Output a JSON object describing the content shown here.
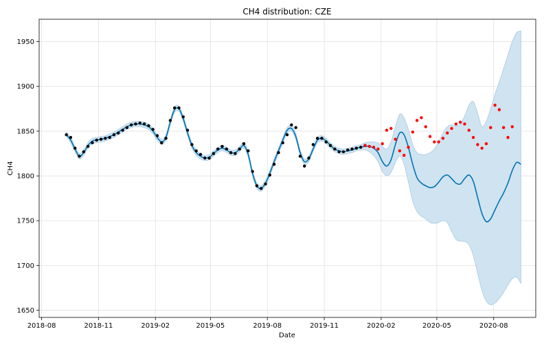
{
  "chart_data": {
    "type": "line",
    "title": "CH4 distribution: CZE",
    "xlabel": "Date",
    "ylabel": "CH4",
    "x_ticks": [
      "2018-08",
      "2018-11",
      "2019-02",
      "2019-05",
      "2019-08",
      "2019-11",
      "2020-02",
      "2020-05",
      "2020-08"
    ],
    "y_ticks": [
      1650,
      1700,
      1750,
      1800,
      1850,
      1900,
      1950
    ],
    "xlim": [
      "2018-07-28",
      "2020-10-08"
    ],
    "ylim": [
      1642,
      1975
    ],
    "grid": true,
    "colors": {
      "forecast": "#0072B2",
      "uncertainty": "#cfe3f0",
      "uncertainty_edge": "#a9cbe3",
      "history": "#000000",
      "actual_future": "#ff0000",
      "grid": "#e0e0e0"
    },
    "series": [
      {
        "role": "history",
        "x": [
          "2018-09-10",
          "2018-09-17",
          "2018-09-24",
          "2018-10-01",
          "2018-10-08",
          "2018-10-15",
          "2018-10-22",
          "2018-10-29",
          "2018-11-05",
          "2018-11-12",
          "2018-11-19",
          "2018-11-26",
          "2018-12-03",
          "2018-12-10",
          "2018-12-17",
          "2018-12-24",
          "2018-12-31",
          "2019-01-07",
          "2019-01-14",
          "2019-01-21",
          "2019-01-28",
          "2019-02-04",
          "2019-02-11",
          "2019-02-18",
          "2019-02-25",
          "2019-03-04",
          "2019-03-11",
          "2019-03-18",
          "2019-03-25",
          "2019-04-01",
          "2019-04-08",
          "2019-04-15",
          "2019-04-22",
          "2019-04-29",
          "2019-05-06",
          "2019-05-13",
          "2019-05-20",
          "2019-05-27",
          "2019-06-03",
          "2019-06-10",
          "2019-06-17",
          "2019-06-24",
          "2019-07-01",
          "2019-07-08",
          "2019-07-15",
          "2019-07-22",
          "2019-07-29",
          "2019-08-05",
          "2019-08-12",
          "2019-08-19",
          "2019-08-26",
          "2019-09-02",
          "2019-09-09",
          "2019-09-16",
          "2019-09-23",
          "2019-09-30",
          "2019-10-07",
          "2019-10-14",
          "2019-10-21",
          "2019-10-28",
          "2019-11-04",
          "2019-11-11",
          "2019-11-18",
          "2019-11-25",
          "2019-12-02",
          "2019-12-09",
          "2019-12-16",
          "2019-12-23",
          "2019-12-30",
          "2020-01-06"
        ],
        "y": [
          1846,
          1843,
          1831,
          1822,
          1827,
          1833,
          1837,
          1840,
          1841,
          1842,
          1843,
          1846,
          1848,
          1851,
          1854,
          1857,
          1858,
          1859,
          1858,
          1856,
          1852,
          1845,
          1837,
          1842,
          1862,
          1876,
          1876,
          1866,
          1851,
          1835,
          1828,
          1824,
          1820,
          1820,
          1825,
          1830,
          1833,
          1830,
          1826,
          1825,
          1830,
          1836,
          1828,
          1805,
          1789,
          1786,
          1791,
          1801,
          1813,
          1826,
          1837,
          1846,
          1857,
          1854,
          1822,
          1811,
          1820,
          1835,
          1842,
          1842,
          1838,
          1834,
          1830,
          1827,
          1827,
          1829,
          1830,
          1831,
          1832,
          1834
        ]
      },
      {
        "role": "actual_future",
        "x": [
          "2020-01-06",
          "2020-01-13",
          "2020-01-20",
          "2020-01-27",
          "2020-02-03",
          "2020-02-10",
          "2020-02-17",
          "2020-02-24",
          "2020-03-02",
          "2020-03-09",
          "2020-03-16",
          "2020-03-23",
          "2020-03-30",
          "2020-04-06",
          "2020-04-13",
          "2020-04-20",
          "2020-04-27",
          "2020-05-04",
          "2020-05-11",
          "2020-05-18",
          "2020-05-25",
          "2020-06-01",
          "2020-06-08",
          "2020-06-15",
          "2020-06-22",
          "2020-06-29",
          "2020-07-06",
          "2020-07-13",
          "2020-07-20",
          "2020-07-27",
          "2020-08-03",
          "2020-08-10",
          "2020-08-17",
          "2020-08-24",
          "2020-08-31"
        ],
        "y": [
          1834,
          1833,
          1832,
          1830,
          1836,
          1851,
          1853,
          1841,
          1828,
          1823,
          1832,
          1849,
          1862,
          1865,
          1855,
          1844,
          1838,
          1838,
          1842,
          1848,
          1853,
          1858,
          1860,
          1858,
          1851,
          1843,
          1835,
          1831,
          1836,
          1854,
          1879,
          1874,
          1854,
          1843,
          1855
        ]
      },
      {
        "role": "forecast",
        "x": [
          "2018-09-10",
          "2018-09-17",
          "2018-09-24",
          "2018-10-01",
          "2018-10-08",
          "2018-10-15",
          "2018-10-22",
          "2018-10-29",
          "2018-11-05",
          "2018-11-12",
          "2018-11-19",
          "2018-11-26",
          "2018-12-03",
          "2018-12-10",
          "2018-12-17",
          "2018-12-24",
          "2018-12-31",
          "2019-01-07",
          "2019-01-14",
          "2019-01-21",
          "2019-01-28",
          "2019-02-04",
          "2019-02-11",
          "2019-02-18",
          "2019-02-25",
          "2019-03-04",
          "2019-03-11",
          "2019-03-18",
          "2019-03-25",
          "2019-04-01",
          "2019-04-08",
          "2019-04-15",
          "2019-04-22",
          "2019-04-29",
          "2019-05-06",
          "2019-05-13",
          "2019-05-20",
          "2019-05-27",
          "2019-06-03",
          "2019-06-10",
          "2019-06-17",
          "2019-06-24",
          "2019-07-01",
          "2019-07-08",
          "2019-07-15",
          "2019-07-22",
          "2019-07-29",
          "2019-08-05",
          "2019-08-12",
          "2019-08-19",
          "2019-08-26",
          "2019-09-02",
          "2019-09-09",
          "2019-09-16",
          "2019-09-23",
          "2019-09-30",
          "2019-10-07",
          "2019-10-14",
          "2019-10-21",
          "2019-10-28",
          "2019-11-04",
          "2019-11-11",
          "2019-11-18",
          "2019-11-25",
          "2019-12-02",
          "2019-12-09",
          "2019-12-16",
          "2019-12-23",
          "2019-12-30",
          "2020-01-06",
          "2020-01-13",
          "2020-01-20",
          "2020-01-27",
          "2020-02-03",
          "2020-02-10",
          "2020-02-17",
          "2020-02-24",
          "2020-03-02",
          "2020-03-09",
          "2020-03-16",
          "2020-03-23",
          "2020-03-30",
          "2020-04-06",
          "2020-04-13",
          "2020-04-20",
          "2020-04-27",
          "2020-05-04",
          "2020-05-11",
          "2020-05-18",
          "2020-05-25",
          "2020-06-01",
          "2020-06-08",
          "2020-06-15",
          "2020-06-22",
          "2020-06-29",
          "2020-07-06",
          "2020-07-13",
          "2020-07-20",
          "2020-07-27",
          "2020-08-03",
          "2020-08-10",
          "2020-08-17",
          "2020-08-24",
          "2020-08-31",
          "2020-09-07",
          "2020-09-14"
        ],
        "y": [
          1846,
          1840,
          1830,
          1822,
          1826,
          1834,
          1839,
          1840,
          1841,
          1842,
          1844,
          1846,
          1849,
          1852,
          1855,
          1857,
          1858,
          1858,
          1857,
          1855,
          1850,
          1843,
          1838,
          1843,
          1860,
          1874,
          1875,
          1864,
          1848,
          1834,
          1826,
          1822,
          1820,
          1821,
          1825,
          1829,
          1831,
          1829,
          1826,
          1826,
          1830,
          1834,
          1824,
          1803,
          1789,
          1786,
          1792,
          1803,
          1816,
          1828,
          1840,
          1851,
          1853,
          1844,
          1826,
          1816,
          1819,
          1830,
          1840,
          1842,
          1839,
          1834,
          1830,
          1828,
          1827,
          1828,
          1829,
          1831,
          1832,
          1833,
          1833,
          1831,
          1826,
          1816,
          1811,
          1818,
          1835,
          1848,
          1846,
          1832,
          1813,
          1798,
          1792,
          1789,
          1787,
          1788,
          1793,
          1799,
          1801,
          1797,
          1792,
          1791,
          1797,
          1801,
          1794,
          1776,
          1758,
          1749,
          1752,
          1762,
          1772,
          1781,
          1792,
          1806,
          1815,
          1813
        ],
        "lower": [
          1844,
          1837,
          1827,
          1819,
          1823,
          1831,
          1836,
          1837,
          1838,
          1839,
          1841,
          1843,
          1846,
          1849,
          1852,
          1854,
          1855,
          1855,
          1854,
          1852,
          1847,
          1840,
          1835,
          1840,
          1857,
          1871,
          1872,
          1861,
          1845,
          1831,
          1823,
          1819,
          1817,
          1818,
          1822,
          1826,
          1828,
          1826,
          1823,
          1823,
          1827,
          1831,
          1821,
          1800,
          1786,
          1783,
          1789,
          1800,
          1813,
          1825,
          1837,
          1848,
          1850,
          1841,
          1823,
          1813,
          1816,
          1827,
          1837,
          1839,
          1836,
          1831,
          1827,
          1825,
          1824,
          1825,
          1826,
          1828,
          1829,
          1829,
          1827,
          1823,
          1816,
          1805,
          1800,
          1804,
          1815,
          1822,
          1813,
          1793,
          1772,
          1760,
          1755,
          1752,
          1748,
          1747,
          1748,
          1750,
          1748,
          1738,
          1729,
          1727,
          1727,
          1723,
          1711,
          1691,
          1672,
          1660,
          1656,
          1658,
          1663,
          1670,
          1678,
          1685,
          1687,
          1680
        ],
        "upper": [
          1849,
          1843,
          1833,
          1825,
          1829,
          1837,
          1842,
          1843,
          1844,
          1845,
          1847,
          1849,
          1852,
          1855,
          1858,
          1860,
          1861,
          1861,
          1860,
          1858,
          1853,
          1846,
          1841,
          1846,
          1863,
          1877,
          1878,
          1867,
          1851,
          1837,
          1829,
          1825,
          1823,
          1824,
          1828,
          1832,
          1834,
          1832,
          1829,
          1829,
          1833,
          1837,
          1827,
          1806,
          1792,
          1789,
          1795,
          1806,
          1819,
          1831,
          1843,
          1854,
          1856,
          1847,
          1829,
          1819,
          1822,
          1833,
          1843,
          1845,
          1842,
          1837,
          1833,
          1831,
          1830,
          1831,
          1832,
          1834,
          1835,
          1837,
          1838,
          1838,
          1837,
          1833,
          1830,
          1838,
          1855,
          1869,
          1865,
          1852,
          1835,
          1826,
          1824,
          1824,
          1826,
          1830,
          1838,
          1848,
          1855,
          1857,
          1856,
          1858,
          1867,
          1879,
          1883,
          1870,
          1855,
          1861,
          1875,
          1891,
          1905,
          1920,
          1935,
          1950,
          1960,
          1962
        ]
      }
    ]
  }
}
